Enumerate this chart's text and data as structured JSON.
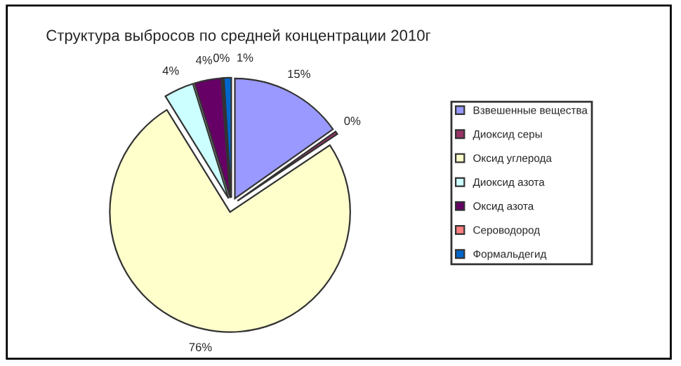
{
  "chart_data": {
    "type": "pie",
    "title": "Структура выбросов по средней концентрации 2010г",
    "categories": [
      "Взвешенные вещества",
      "Диоксид серы",
      "Оксид углерода",
      "Диоксид азота",
      "Оксид азота",
      "Сероводород",
      "Формальдегид"
    ],
    "values": [
      15.2,
      0.4,
      75.6,
      4.0,
      3.6,
      0.2,
      1.0
    ],
    "value_labels": [
      "15%",
      "0%",
      "76%",
      "4%",
      "4%",
      "0%",
      "1%"
    ],
    "colors": [
      "#9999ff",
      "#993366",
      "#ffffcc",
      "#ccffff",
      "#660066",
      "#ff8080",
      "#0066cc"
    ],
    "legend": "right"
  }
}
